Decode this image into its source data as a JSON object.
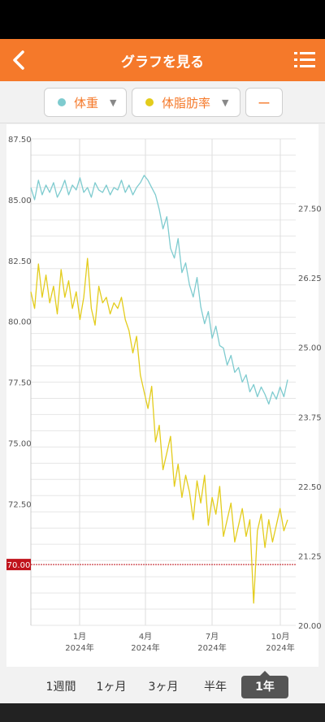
{
  "header": {
    "title": "グラフを見る",
    "back_icon": "chevron-left-icon",
    "menu_icon": "list-menu-icon",
    "color": "#f5792a"
  },
  "filters": {
    "weight": {
      "label": "体重",
      "color": "#7ecbcf"
    },
    "fat": {
      "label": "体脂肪率",
      "color": "#e3cc1c"
    },
    "extra": {
      "label": "ー"
    }
  },
  "periods": [
    {
      "label": "1週間",
      "active": false
    },
    {
      "label": "1ヶ月",
      "active": false
    },
    {
      "label": "3ヶ月",
      "active": false
    },
    {
      "label": "半年",
      "active": false
    },
    {
      "label": "1年",
      "active": true
    }
  ],
  "chart_data": {
    "type": "line",
    "left_axis": {
      "ticks": [
        "87.50",
        "85.00",
        "82.50",
        "80.00",
        "77.50",
        "75.00",
        "72.50"
      ],
      "range": [
        67.5,
        87.5
      ]
    },
    "right_axis": {
      "ticks": [
        "27.50",
        "26.25",
        "25.00",
        "23.75",
        "22.50",
        "21.25",
        "20.00"
      ],
      "range": [
        20.0,
        28.75
      ]
    },
    "target_line": {
      "value": "70.00",
      "color": "#c0121b"
    },
    "x_ticks": [
      {
        "month": "1月",
        "year": "2024年"
      },
      {
        "month": "4月",
        "year": "2024年"
      },
      {
        "month": "7月",
        "year": "2024年"
      },
      {
        "month": "10月",
        "year": "2024年"
      }
    ],
    "series": [
      {
        "axis": "left",
        "color": "#7ecbcf",
        "values": [
          85.5,
          85.0,
          85.8,
          85.2,
          85.6,
          85.3,
          85.7,
          85.1,
          85.4,
          85.8,
          85.2,
          85.6,
          85.4,
          85.9,
          85.3,
          85.5,
          85.1,
          85.7,
          85.4,
          85.3,
          85.6,
          85.2,
          85.5,
          85.4,
          85.8,
          85.3,
          85.6,
          85.2,
          85.5,
          85.7,
          86.0,
          85.8,
          85.5,
          85.2,
          84.6,
          83.8,
          84.3,
          83.0,
          82.6,
          83.4,
          82.0,
          82.4,
          81.5,
          81.0,
          81.8,
          80.6,
          79.9,
          80.4,
          79.3,
          79.8,
          79.0,
          78.9,
          78.2,
          78.6,
          77.9,
          78.1,
          77.5,
          77.8,
          77.1,
          77.4,
          76.9,
          77.3,
          77.0,
          76.6,
          77.1,
          76.8,
          77.3,
          76.9,
          77.6
        ]
      },
      {
        "axis": "right",
        "color": "#e3cc1c",
        "values": [
          26.0,
          25.7,
          26.5,
          25.9,
          26.3,
          25.8,
          26.1,
          25.6,
          26.4,
          25.9,
          26.2,
          25.7,
          26.0,
          25.5,
          25.9,
          26.6,
          25.7,
          25.4,
          26.1,
          25.8,
          25.9,
          25.6,
          25.8,
          25.7,
          25.9,
          25.5,
          25.3,
          24.9,
          25.2,
          24.5,
          24.2,
          23.9,
          24.3,
          23.3,
          23.6,
          22.8,
          23.1,
          23.4,
          22.5,
          22.9,
          22.3,
          22.7,
          22.4,
          21.9,
          22.6,
          22.2,
          22.7,
          21.8,
          22.3,
          22.0,
          22.5,
          21.6,
          21.9,
          22.2,
          21.5,
          21.8,
          22.1,
          21.6,
          21.9,
          20.4,
          21.7,
          22.0,
          21.4,
          21.9,
          21.5,
          21.8,
          22.1,
          21.7,
          21.9
        ]
      }
    ]
  }
}
